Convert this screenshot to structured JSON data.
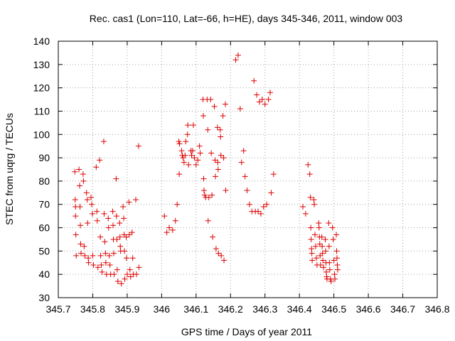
{
  "chart_data": {
    "type": "scatter",
    "title": "Rec. cas1 (Lon=110, Lat=-66, h=HE), days 345-346, 2011, window 003",
    "xlabel": "GPS time / Days of year 2011",
    "ylabel": "STEC from uqrg / TECUs",
    "xlim": [
      345.7,
      346.8
    ],
    "ylim": [
      30,
      140
    ],
    "xticks": [
      "345.7",
      "345.8",
      "345.9",
      "346",
      "346.1",
      "346.2",
      "346.3",
      "346.4",
      "346.5",
      "346.6",
      "346.7",
      "346.8"
    ],
    "yticks": [
      "30",
      "40",
      "50",
      "60",
      "70",
      "80",
      "90",
      "100",
      "110",
      "120",
      "130",
      "140"
    ],
    "grid": true,
    "marker": "+",
    "color": "#dd0000",
    "points": [
      [
        345.748,
        84
      ],
      [
        345.749,
        72
      ],
      [
        345.75,
        69
      ],
      [
        345.75,
        65
      ],
      [
        345.751,
        57
      ],
      [
        345.752,
        48
      ],
      [
        345.76,
        85
      ],
      [
        345.762,
        78
      ],
      [
        345.763,
        69
      ],
      [
        345.764,
        61
      ],
      [
        345.765,
        53
      ],
      [
        345.766,
        49
      ],
      [
        345.772,
        83
      ],
      [
        345.773,
        80
      ],
      [
        345.775,
        52
      ],
      [
        345.777,
        48
      ],
      [
        345.782,
        75
      ],
      [
        345.784,
        72
      ],
      [
        345.785,
        62
      ],
      [
        345.787,
        47
      ],
      [
        345.788,
        45
      ],
      [
        345.795,
        73
      ],
      [
        345.797,
        70
      ],
      [
        345.799,
        66
      ],
      [
        345.8,
        48
      ],
      [
        345.802,
        44
      ],
      [
        345.81,
        86
      ],
      [
        345.812,
        67
      ],
      [
        345.813,
        63
      ],
      [
        345.815,
        43
      ],
      [
        345.82,
        89
      ],
      [
        345.822,
        56
      ],
      [
        345.823,
        48
      ],
      [
        345.825,
        44
      ],
      [
        345.827,
        41
      ],
      [
        345.832,
        97
      ],
      [
        345.833,
        66
      ],
      [
        345.835,
        54
      ],
      [
        345.837,
        49
      ],
      [
        345.838,
        45
      ],
      [
        345.84,
        40
      ],
      [
        345.845,
        64
      ],
      [
        345.846,
        60
      ],
      [
        345.848,
        48
      ],
      [
        345.85,
        44
      ],
      [
        345.852,
        40
      ],
      [
        345.858,
        67
      ],
      [
        345.859,
        61
      ],
      [
        345.86,
        55
      ],
      [
        345.861,
        49
      ],
      [
        345.862,
        40
      ],
      [
        345.868,
        81
      ],
      [
        345.869,
        65
      ],
      [
        345.87,
        55
      ],
      [
        345.871,
        42
      ],
      [
        345.873,
        37
      ],
      [
        345.878,
        62
      ],
      [
        345.879,
        56
      ],
      [
        345.88,
        52
      ],
      [
        345.881,
        50
      ],
      [
        345.883,
        36
      ],
      [
        345.888,
        69
      ],
      [
        345.89,
        64
      ],
      [
        345.891,
        57
      ],
      [
        345.892,
        50
      ],
      [
        345.893,
        38
      ],
      [
        345.897,
        56
      ],
      [
        345.898,
        47
      ],
      [
        345.9,
        40
      ],
      [
        345.905,
        71
      ],
      [
        345.906,
        57
      ],
      [
        345.908,
        42
      ],
      [
        345.91,
        39
      ],
      [
        345.914,
        58
      ],
      [
        345.916,
        47
      ],
      [
        345.918,
        40
      ],
      [
        345.925,
        72
      ],
      [
        345.927,
        40
      ],
      [
        345.933,
        95
      ],
      [
        345.934,
        43
      ],
      [
        346.008,
        65
      ],
      [
        346.015,
        58
      ],
      [
        346.022,
        60
      ],
      [
        346.032,
        59
      ],
      [
        346.04,
        63
      ],
      [
        346.045,
        70
      ],
      [
        346.05,
        97
      ],
      [
        346.051,
        83
      ],
      [
        346.052,
        96
      ],
      [
        346.058,
        93
      ],
      [
        346.06,
        91
      ],
      [
        346.062,
        90
      ],
      [
        346.065,
        88
      ],
      [
        346.068,
        91
      ],
      [
        346.07,
        97
      ],
      [
        346.075,
        100
      ],
      [
        346.076,
        104
      ],
      [
        346.078,
        87
      ],
      [
        346.085,
        93
      ],
      [
        346.087,
        91
      ],
      [
        346.09,
        93
      ],
      [
        346.092,
        104
      ],
      [
        346.095,
        90
      ],
      [
        346.1,
        87
      ],
      [
        346.105,
        89
      ],
      [
        346.11,
        95
      ],
      [
        346.112,
        92
      ],
      [
        346.12,
        115
      ],
      [
        346.121,
        108
      ],
      [
        346.122,
        81
      ],
      [
        346.123,
        76
      ],
      [
        346.125,
        74
      ],
      [
        346.128,
        73
      ],
      [
        346.132,
        115
      ],
      [
        346.134,
        102
      ],
      [
        346.135,
        63
      ],
      [
        346.137,
        73
      ],
      [
        346.142,
        115
      ],
      [
        346.144,
        92
      ],
      [
        346.146,
        74
      ],
      [
        346.148,
        56
      ],
      [
        346.153,
        112
      ],
      [
        346.155,
        89
      ],
      [
        346.156,
        82
      ],
      [
        346.158,
        51
      ],
      [
        346.162,
        103
      ],
      [
        346.163,
        88
      ],
      [
        346.164,
        85
      ],
      [
        346.165,
        49
      ],
      [
        346.17,
        102
      ],
      [
        346.171,
        99
      ],
      [
        346.172,
        91
      ],
      [
        346.173,
        48
      ],
      [
        346.178,
        108
      ],
      [
        346.18,
        90
      ],
      [
        346.181,
        46
      ],
      [
        346.185,
        113
      ],
      [
        346.186,
        76
      ],
      [
        346.215,
        132
      ],
      [
        346.222,
        134
      ],
      [
        346.228,
        111
      ],
      [
        346.232,
        88
      ],
      [
        346.238,
        93
      ],
      [
        346.242,
        82
      ],
      [
        346.248,
        76
      ],
      [
        346.255,
        70
      ],
      [
        346.262,
        67
      ],
      [
        346.268,
        123
      ],
      [
        346.272,
        67
      ],
      [
        346.276,
        117
      ],
      [
        346.28,
        67
      ],
      [
        346.284,
        114
      ],
      [
        346.288,
        66
      ],
      [
        346.292,
        115
      ],
      [
        346.296,
        69
      ],
      [
        346.3,
        113
      ],
      [
        346.305,
        70
      ],
      [
        346.31,
        115
      ],
      [
        346.315,
        118
      ],
      [
        346.318,
        75
      ],
      [
        346.325,
        83
      ],
      [
        346.41,
        69
      ],
      [
        346.418,
        66
      ],
      [
        346.425,
        87
      ],
      [
        346.43,
        83
      ],
      [
        346.432,
        73
      ],
      [
        346.433,
        60
      ],
      [
        346.434,
        55
      ],
      [
        346.435,
        51
      ],
      [
        346.436,
        49
      ],
      [
        346.437,
        46
      ],
      [
        346.442,
        72
      ],
      [
        346.443,
        70
      ],
      [
        346.445,
        57
      ],
      [
        346.447,
        52
      ],
      [
        346.449,
        47
      ],
      [
        346.451,
        44
      ],
      [
        346.456,
        62
      ],
      [
        346.457,
        60
      ],
      [
        346.458,
        56
      ],
      [
        346.459,
        53
      ],
      [
        346.46,
        48
      ],
      [
        346.461,
        44
      ],
      [
        346.465,
        56
      ],
      [
        346.466,
        52
      ],
      [
        346.467,
        49
      ],
      [
        346.468,
        46
      ],
      [
        346.47,
        43
      ],
      [
        346.475,
        55
      ],
      [
        346.476,
        50
      ],
      [
        346.477,
        45
      ],
      [
        346.478,
        41
      ],
      [
        346.479,
        39
      ],
      [
        346.48,
        38
      ],
      [
        346.485,
        62
      ],
      [
        346.486,
        52
      ],
      [
        346.487,
        45
      ],
      [
        346.488,
        42
      ],
      [
        346.49,
        38
      ],
      [
        346.492,
        37
      ],
      [
        346.496,
        60
      ],
      [
        346.498,
        55
      ],
      [
        346.5,
        46
      ],
      [
        346.502,
        40
      ],
      [
        346.503,
        38
      ],
      [
        346.507,
        57
      ],
      [
        346.508,
        50
      ],
      [
        346.509,
        47
      ],
      [
        346.51,
        44
      ],
      [
        346.511,
        42
      ]
    ]
  }
}
